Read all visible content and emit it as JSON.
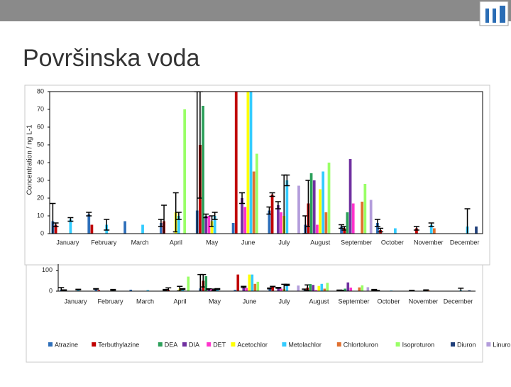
{
  "slide_title": "Površinska voda",
  "chart_data": [
    {
      "type": "bar",
      "y_label": "Concentration / ng L-1",
      "categories": [
        "January",
        "February",
        "March",
        "April",
        "May",
        "June",
        "July",
        "August",
        "September",
        "October",
        "November",
        "December"
      ],
      "ylim": [
        0,
        80
      ],
      "yticks": [
        0,
        10,
        20,
        30,
        40,
        50,
        60,
        70,
        80
      ],
      "series": [
        {
          "name": "Atrazine",
          "color": "#2e6fba",
          "values": [
            7,
            11,
            7,
            6,
            13,
            6,
            13,
            5,
            4,
            6,
            null,
            null
          ],
          "errors": [
            10,
            1,
            null,
            2,
            67,
            null,
            2,
            5,
            1,
            2,
            null,
            null
          ]
        },
        {
          "name": "Terbuthylazine",
          "color": "#c00000",
          "values": [
            5,
            5,
            null,
            7,
            50,
            80,
            22,
            17,
            3,
            2,
            3,
            null
          ],
          "errors": [
            1,
            null,
            null,
            9,
            30,
            null,
            1,
            13,
            1,
            1,
            1,
            null
          ]
        },
        {
          "name": "DEA",
          "color": "#2ca05a",
          "values": [
            null,
            null,
            null,
            null,
            72,
            null,
            null,
            34,
            12,
            null,
            null,
            null
          ],
          "errors": [
            null,
            null,
            null,
            null,
            null,
            null,
            null,
            null,
            null,
            null,
            null,
            null
          ]
        },
        {
          "name": "DIA",
          "color": "#7030a0",
          "values": [
            null,
            null,
            null,
            null,
            10,
            20,
            16,
            30,
            42,
            null,
            null,
            null
          ],
          "errors": [
            null,
            null,
            null,
            null,
            1,
            3,
            2,
            null,
            null,
            null,
            null,
            null
          ]
        },
        {
          "name": "DET",
          "color": "#ff33cc",
          "values": [
            null,
            null,
            null,
            null,
            10,
            15,
            12,
            5,
            17,
            null,
            null,
            null
          ],
          "errors": [
            null,
            null,
            null,
            null,
            null,
            null,
            null,
            null,
            null,
            null,
            null,
            null
          ]
        },
        {
          "name": "Acetochlor",
          "color": "#ffff00",
          "values": [
            null,
            null,
            null,
            12,
            7,
            80,
            10,
            25,
            null,
            null,
            null,
            null
          ],
          "errors": [
            null,
            null,
            null,
            11,
            3,
            null,
            23,
            null,
            null,
            null,
            null,
            null
          ]
        },
        {
          "name": "Metolachlor",
          "color": "#33ccff",
          "values": [
            8,
            5,
            5,
            10,
            10,
            80,
            30,
            35,
            null,
            3,
            5,
            4
          ],
          "errors": [
            1,
            3,
            null,
            2,
            2,
            null,
            3,
            null,
            null,
            null,
            1,
            10
          ]
        },
        {
          "name": "Chlortoluron",
          "color": "#e07030",
          "values": [
            null,
            null,
            null,
            null,
            null,
            35,
            null,
            12,
            18,
            null,
            3,
            null
          ],
          "errors": [
            null,
            null,
            null,
            null,
            null,
            null,
            null,
            null,
            null,
            null,
            null,
            null
          ]
        },
        {
          "name": "Isoproturon",
          "color": "#99ff66",
          "values": [
            null,
            null,
            null,
            70,
            null,
            45,
            null,
            40,
            28,
            null,
            null,
            null
          ],
          "errors": [
            null,
            null,
            null,
            null,
            null,
            null,
            null,
            null,
            null,
            null,
            null,
            null
          ]
        },
        {
          "name": "Diuron",
          "color": "#1f3f7a",
          "values": [
            null,
            null,
            null,
            null,
            null,
            null,
            null,
            null,
            null,
            null,
            null,
            4
          ],
          "errors": [
            null,
            null,
            null,
            null,
            null,
            null,
            null,
            null,
            null,
            null,
            null,
            null
          ]
        },
        {
          "name": "Linuron",
          "color": "#b39ddb",
          "values": [
            null,
            null,
            null,
            null,
            null,
            null,
            27,
            null,
            19,
            null,
            null,
            null
          ],
          "errors": [
            null,
            null,
            null,
            null,
            null,
            null,
            null,
            null,
            null,
            null,
            null,
            null
          ]
        }
      ]
    },
    {
      "type": "bar",
      "categories": [
        "January",
        "February",
        "March",
        "April",
        "May",
        "June",
        "July",
        "August",
        "September",
        "October",
        "November",
        "December"
      ],
      "ylim": [
        0,
        130
      ],
      "yticks": [
        0,
        100
      ]
    }
  ]
}
